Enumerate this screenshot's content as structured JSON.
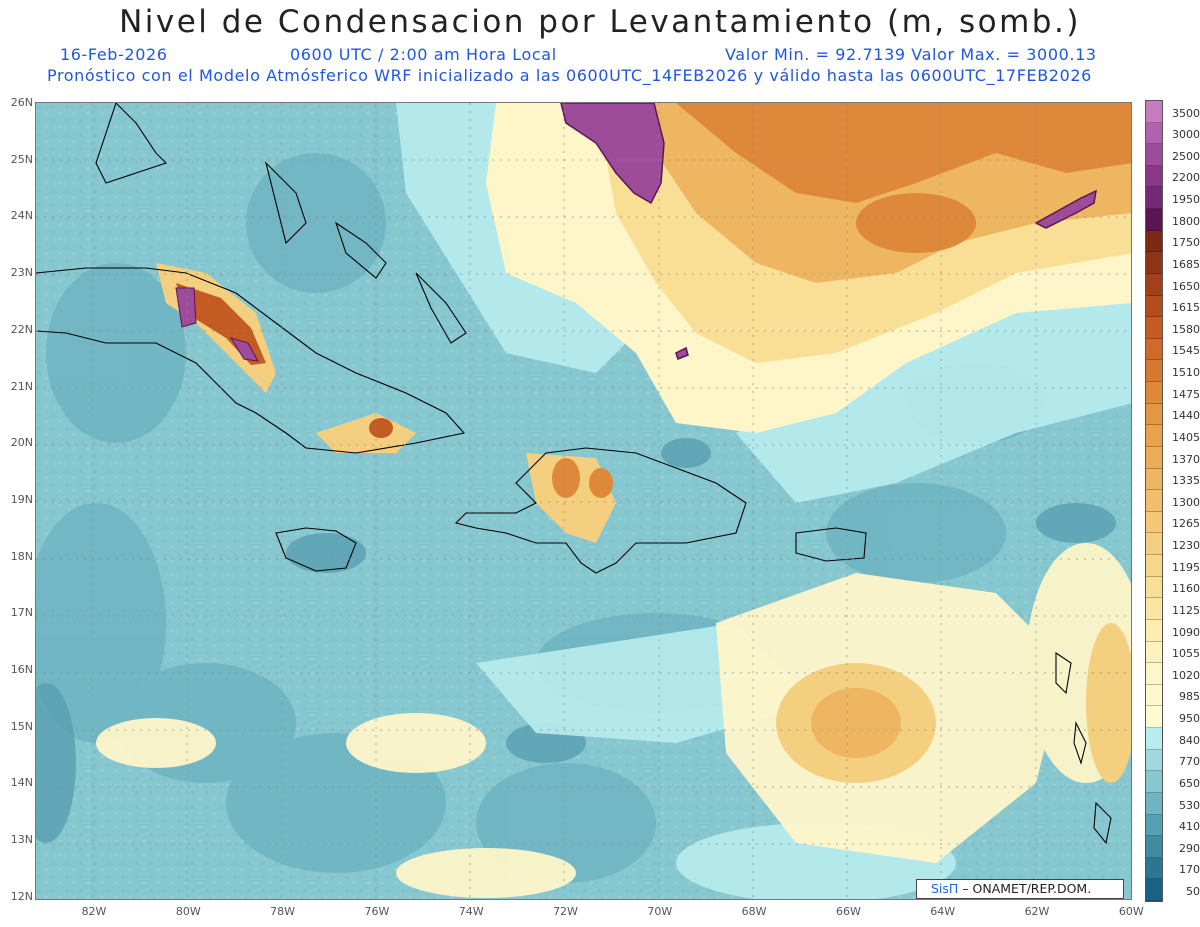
{
  "header": {
    "title": "Nivel de Condensacion por Levantamiento (m, somb.)",
    "date": "16-Feb-2026",
    "time": "0600 UTC / 2:00 am Hora Local",
    "min_max": "Valor Min. = 92.7139  Valor Max. = 3000.13",
    "description": "Pronóstico con el Modelo Atmósferico WRF inicializado a las 0600UTC_14FEB2026 y válido hasta las  0600UTC_17FEB2026"
  },
  "axes": {
    "lat_labels": [
      "26N",
      "25N",
      "24N",
      "23N",
      "22N",
      "21N",
      "20N",
      "19N",
      "18N",
      "17N",
      "16N",
      "15N",
      "14N",
      "13N",
      "12N"
    ],
    "lon_labels": [
      "82W",
      "80W",
      "78W",
      "76W",
      "74W",
      "72W",
      "70W",
      "68W",
      "66W",
      "64W",
      "62W",
      "60W"
    ]
  },
  "legend": {
    "labels": [
      "3500",
      "3000",
      "2500",
      "2200",
      "1950",
      "1800",
      "1750",
      "1685",
      "1650",
      "1615",
      "1580",
      "1545",
      "1510",
      "1475",
      "1440",
      "1405",
      "1370",
      "1335",
      "1300",
      "1265",
      "1230",
      "1195",
      "1160",
      "1125",
      "1090",
      "1055",
      "1020",
      "985",
      "950",
      "840",
      "770",
      "650",
      "530",
      "410",
      "290",
      "170",
      "50"
    ],
    "colors": [
      "#c77dc0",
      "#b262ad",
      "#9c4c98",
      "#8a3786",
      "#752874",
      "#5b1552",
      "#7b2a16",
      "#8d3517",
      "#a2401a",
      "#b44d1d",
      "#c45b22",
      "#cf6a28",
      "#d77a30",
      "#de893a",
      "#e39644",
      "#e8a24e",
      "#ecac58",
      "#efb662",
      "#f1bf6c",
      "#f3c876",
      "#f5cf80",
      "#f7d78a",
      "#f9de96",
      "#fae6a2",
      "#fcecb0",
      "#fdf2bd",
      "#fef6c9",
      "#fff8cc",
      "#fffbd0",
      "#b9ecee",
      "#9fd9df",
      "#86c7d0",
      "#6eb4c1",
      "#579fb2",
      "#418ba3",
      "#2c7693",
      "#196283"
    ]
  },
  "credit": {
    "brand": "SisΠ",
    "org": "– ONAMET/REP.DOM."
  }
}
